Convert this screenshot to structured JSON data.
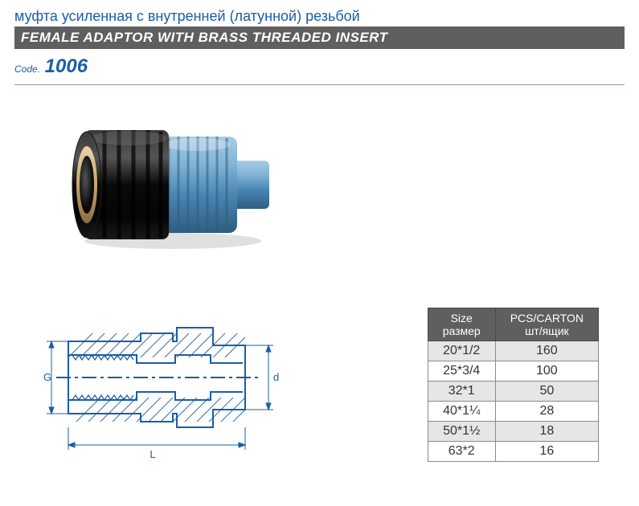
{
  "header": {
    "title_ru": "муфта усиленная с внутренней (латунной) резьбой",
    "title_en": "FEMALE ADAPTOR WITH BRASS THREADED INSERT",
    "code_label": "Code.",
    "code_value": "1006"
  },
  "colors": {
    "accent": "#1a5da8",
    "bar_bg": "#5f5f5f",
    "bar_text": "#ffffff",
    "row_alt": "#e6e6e6",
    "border": "#8a8a8a",
    "drawing_stroke": "#1a5da8"
  },
  "product_render": {
    "body_color_black": "#0f0f0f",
    "body_color_blue": "#6ca6d1",
    "brass_color": "#c9a66b",
    "highlight": "#f2f2f2"
  },
  "drawing": {
    "dim_L": "L",
    "dim_G": "G",
    "dim_d": "d"
  },
  "table": {
    "columns": [
      {
        "line1": "Size",
        "line2": "размер"
      },
      {
        "line1": "PCS/CARTON",
        "line2": "шт/ящик"
      }
    ],
    "rows": [
      [
        "20*1/2",
        "160"
      ],
      [
        "25*3/4",
        "100"
      ],
      [
        "32*1",
        "50"
      ],
      [
        "40*1¼",
        "28"
      ],
      [
        "50*1½",
        "18"
      ],
      [
        "63*2",
        "16"
      ]
    ]
  }
}
